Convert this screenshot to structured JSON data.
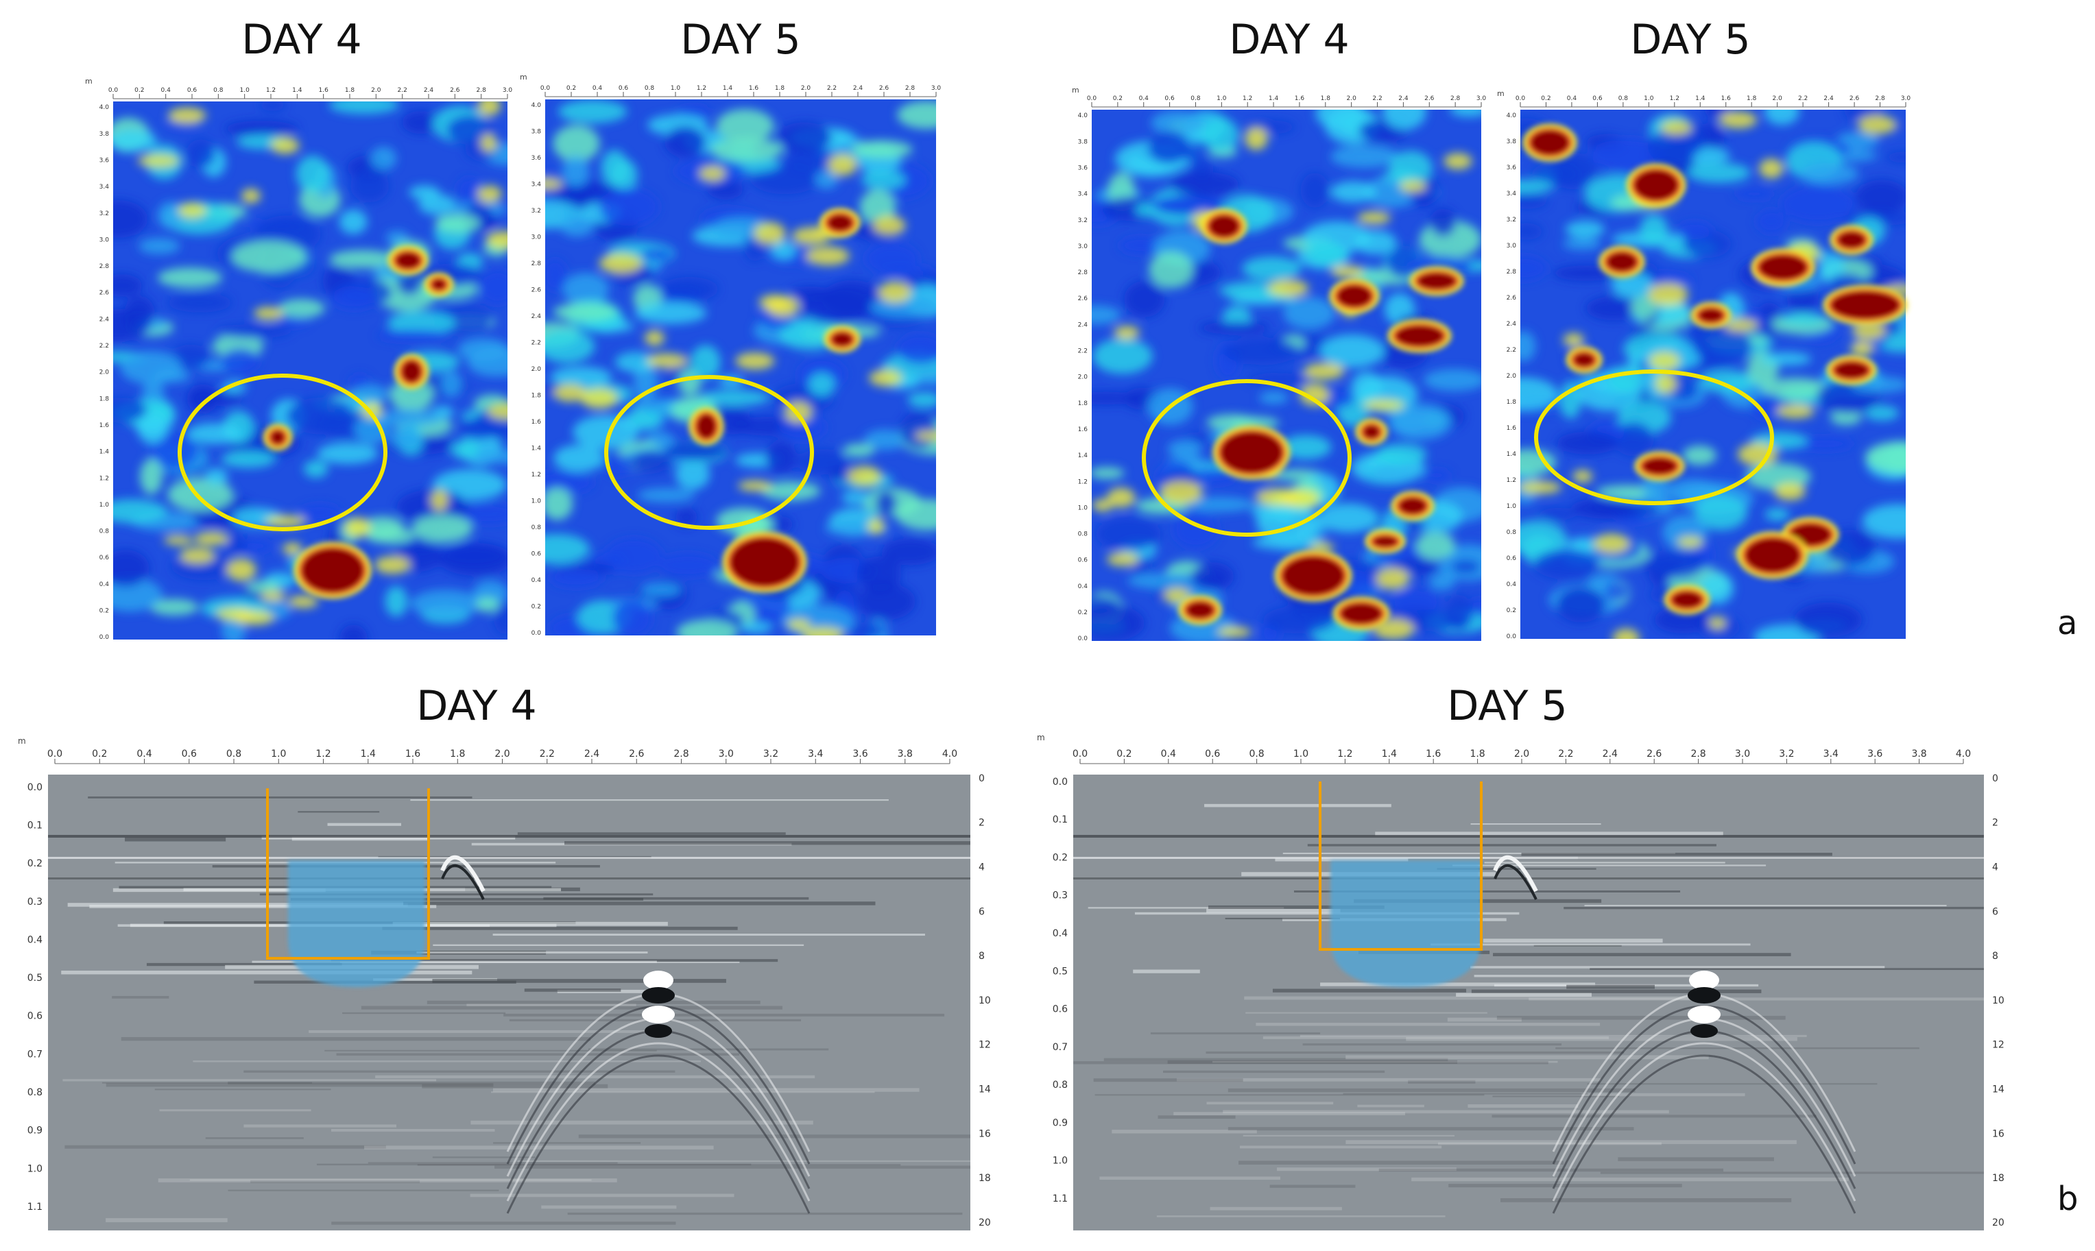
{
  "panel_labels": {
    "a": "a",
    "b": "b"
  },
  "axis_unit": "m",
  "colors": {
    "annotation_circle": "#f2e600",
    "annotation_box": "#f0a000",
    "wet_zone_fill": "#4fa6d8",
    "radargram_gray": "#8c9399",
    "heatmap_low": "#0a2fd0",
    "heatmap_high": "#8a0000"
  },
  "top_row": {
    "panels": [
      {
        "id": "t1",
        "title": "DAY 4",
        "x_ticks": [
          "0.0",
          "0.2",
          "0.4",
          "0.6",
          "0.8",
          "1.0",
          "1.2",
          "1.4",
          "1.6",
          "1.8",
          "2.0",
          "2.2",
          "2.4",
          "2.6",
          "2.8",
          "3.0"
        ],
        "y_ticks": [
          "4.0",
          "3.8",
          "3.6",
          "3.4",
          "3.2",
          "3.0",
          "2.8",
          "2.6",
          "2.4",
          "2.2",
          "2.0",
          "1.8",
          "1.6",
          "1.4",
          "1.2",
          "1.0",
          "0.8",
          "0.6",
          "0.4",
          "0.2",
          "0.0"
        ]
      },
      {
        "id": "t2",
        "title": "DAY 5",
        "x_ticks": [
          "0.0",
          "0.2",
          "0.4",
          "0.6",
          "0.8",
          "1.0",
          "1.2",
          "1.4",
          "1.6",
          "1.8",
          "2.0",
          "2.2",
          "2.4",
          "2.6",
          "2.8",
          "3.0"
        ],
        "y_ticks": [
          "4.0",
          "3.8",
          "3.6",
          "3.4",
          "3.2",
          "3.0",
          "2.8",
          "2.6",
          "2.4",
          "2.2",
          "2.0",
          "1.8",
          "1.6",
          "1.4",
          "1.2",
          "1.0",
          "0.8",
          "0.6",
          "0.4",
          "0.2",
          "0.0"
        ]
      },
      {
        "id": "t3",
        "title": "DAY 4",
        "x_ticks": [
          "0.0",
          "0.2",
          "0.4",
          "0.6",
          "0.8",
          "1.0",
          "1.2",
          "1.4",
          "1.6",
          "1.8",
          "2.0",
          "2.2",
          "2.4",
          "2.6",
          "2.8",
          "3.0"
        ],
        "y_ticks": [
          "4.0",
          "3.8",
          "3.6",
          "3.4",
          "3.2",
          "3.0",
          "2.8",
          "2.6",
          "2.4",
          "2.2",
          "2.0",
          "1.8",
          "1.6",
          "1.4",
          "1.2",
          "1.0",
          "0.8",
          "0.6",
          "0.4",
          "0.2",
          "0.0"
        ]
      },
      {
        "id": "t4",
        "title": "DAY 5",
        "x_ticks": [
          "0.0",
          "0.2",
          "0.4",
          "0.6",
          "0.8",
          "1.0",
          "1.2",
          "1.4",
          "1.6",
          "1.8",
          "2.0",
          "2.2",
          "2.4",
          "2.6",
          "2.8",
          "3.0"
        ],
        "y_ticks": [
          "4.0",
          "3.8",
          "3.6",
          "3.4",
          "3.2",
          "3.0",
          "2.8",
          "2.6",
          "2.4",
          "2.2",
          "2.0",
          "1.8",
          "1.6",
          "1.4",
          "1.2",
          "1.0",
          "0.8",
          "0.6",
          "0.4",
          "0.2",
          "0.0"
        ]
      }
    ]
  },
  "bottom_row": {
    "panels": [
      {
        "id": "b1",
        "title": "DAY 4",
        "x_ticks": [
          "0.0",
          "0.2",
          "0.4",
          "0.6",
          "0.8",
          "1.0",
          "1.2",
          "1.4",
          "1.6",
          "1.8",
          "2.0",
          "2.2",
          "2.4",
          "2.6",
          "2.8",
          "3.0",
          "3.2",
          "3.4",
          "3.6",
          "3.8",
          "4.0"
        ],
        "y_ticks": [
          "0.0",
          "0.1",
          "0.2",
          "0.3",
          "0.4",
          "0.5",
          "0.6",
          "0.7",
          "0.8",
          "0.9",
          "1.0",
          "1.1"
        ],
        "y2_ticks": [
          "0",
          "2",
          "4",
          "6",
          "8",
          "10",
          "12",
          "14",
          "16",
          "18",
          "20"
        ]
      },
      {
        "id": "b2",
        "title": "DAY 5",
        "x_ticks": [
          "0.0",
          "0.2",
          "0.4",
          "0.6",
          "0.8",
          "1.0",
          "1.2",
          "1.4",
          "1.6",
          "1.8",
          "2.0",
          "2.2",
          "2.4",
          "2.6",
          "2.8",
          "3.0",
          "3.2",
          "3.4",
          "3.6",
          "3.8",
          "4.0"
        ],
        "y_ticks": [
          "0.0",
          "0.1",
          "0.2",
          "0.3",
          "0.4",
          "0.5",
          "0.6",
          "0.7",
          "0.8",
          "0.9",
          "1.0",
          "1.1"
        ],
        "y2_ticks": [
          "0",
          "2",
          "4",
          "6",
          "8",
          "10",
          "12",
          "14",
          "16",
          "18",
          "20"
        ]
      }
    ]
  }
}
